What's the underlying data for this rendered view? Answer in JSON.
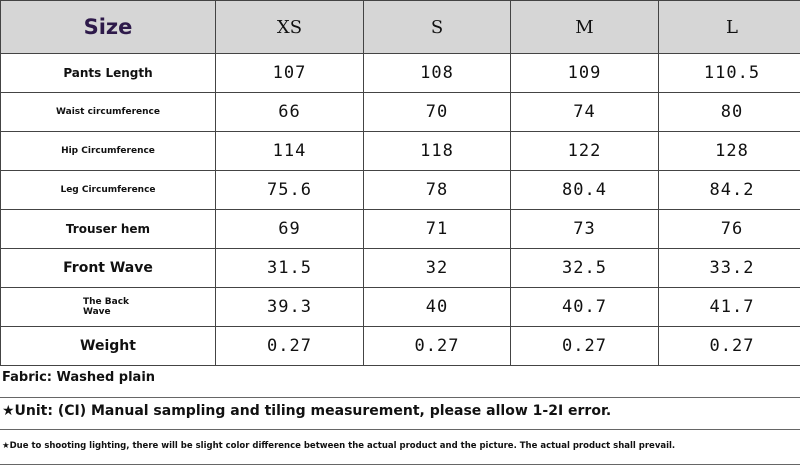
{
  "table": {
    "header": [
      "Size",
      "XS",
      "S",
      "M",
      "L"
    ],
    "rows": [
      [
        "Pants Length",
        "107",
        "108",
        "109",
        "110.5"
      ],
      [
        "Waist circumference",
        "66",
        "70",
        "74",
        "80"
      ],
      [
        "Hip Circumference",
        "114",
        "118",
        "122",
        "128"
      ],
      [
        "Leg Circumference",
        "75.6",
        "78",
        "80.4",
        "84.2"
      ],
      [
        "Trouser hem",
        "69",
        "71",
        "73",
        "76"
      ],
      [
        "Front Wave",
        "31.5",
        "32",
        "32.5",
        "33.2"
      ],
      [
        "The Back Wave",
        "39.3",
        "40",
        "40.7",
        "41.7"
      ],
      [
        "Weight",
        "0.27",
        "0.27",
        "0.27",
        "0.27"
      ]
    ]
  },
  "notes": [
    "Fabric: Washed plain",
    "★Unit: (CI) Manual sampling and tiling measurement, please allow 1-2I error.",
    "★Due to shooting lighting, there will be slight color difference between the actual product and the picture. The actual product shall prevail."
  ]
}
